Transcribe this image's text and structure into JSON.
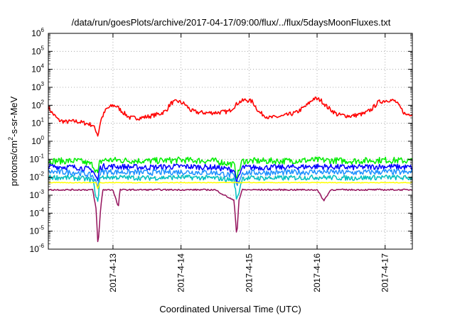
{
  "chart_data": {
    "type": "line",
    "title": "/data/run/goesPlots/archive/2017-04-17/09:00/flux/../flux/5daysMoonFluxes.txt",
    "xlabel": "Coordinated Universal Time (UTC)",
    "ylabel": "protons/cm2-s-sr-MeV",
    "y_scale": "log",
    "ylim_exponent": [
      -6,
      6
    ],
    "y_ticks_exponent": [
      -6,
      -5,
      -4,
      -3,
      -2,
      -1,
      0,
      1,
      2,
      3,
      4,
      5,
      6
    ],
    "x_ticks": [
      "2017-4-13",
      "2017-4-14",
      "2017-4-15",
      "2017-4-16",
      "2017-4-17"
    ],
    "x_tick_label_rotation_deg": -90,
    "xlim_days": [
      12.05,
      17.4
    ],
    "grid": true,
    "grid_style": "dotted",
    "legend": "none",
    "colors": {
      "red": "#ff0000",
      "green": "#00ee00",
      "blue": "#0000ff",
      "medium_blue": "#1e90ff",
      "cyan": "#00c0c0",
      "yellow": "#ffff00",
      "purple": "#94125c"
    },
    "series": [
      {
        "color": "#ff0000",
        "x": [
          12.05,
          12.1,
          12.2,
          12.3,
          12.45,
          12.6,
          12.7,
          12.75,
          12.78,
          12.82,
          12.9,
          13.0,
          13.05,
          13.15,
          13.25,
          13.4,
          13.55,
          13.7,
          13.78,
          13.85,
          13.95,
          14.05,
          14.15,
          14.25,
          14.4,
          14.55,
          14.7,
          14.8,
          14.85,
          14.95,
          15.05,
          15.15,
          15.3,
          15.5,
          15.7,
          15.85,
          15.95,
          16.05,
          16.15,
          16.3,
          16.5,
          16.7,
          16.8,
          16.9,
          17.05,
          17.15,
          17.3,
          17.4
        ],
        "y": [
          80,
          40,
          15,
          12,
          13,
          10,
          8,
          4,
          2,
          15,
          60,
          100,
          90,
          40,
          20,
          20,
          25,
          35,
          50,
          130,
          170,
          120,
          50,
          40,
          38,
          40,
          45,
          100,
          150,
          200,
          160,
          40,
          20,
          25,
          40,
          100,
          240,
          200,
          80,
          30,
          25,
          35,
          60,
          150,
          200,
          170,
          30,
          35
        ]
      },
      {
        "color": "#00ee00",
        "x": [
          12.05,
          12.5,
          12.7,
          12.78,
          12.8,
          12.85,
          13.0,
          13.5,
          14.0,
          14.5,
          14.78,
          14.82,
          14.9,
          15.5,
          16.0,
          16.5,
          17.0,
          17.4
        ],
        "y": [
          0.08,
          0.08,
          0.05,
          0.015,
          0.06,
          0.09,
          0.09,
          0.08,
          0.09,
          0.08,
          0.05,
          0.01,
          0.08,
          0.08,
          0.09,
          0.08,
          0.09,
          0.08
        ]
      },
      {
        "color": "#0000ff",
        "x": [
          12.05,
          12.5,
          12.7,
          12.78,
          12.8,
          12.85,
          13.0,
          13.5,
          14.0,
          14.5,
          14.78,
          14.82,
          14.9,
          15.5,
          16.0,
          16.5,
          17.0,
          17.4
        ],
        "y": [
          0.04,
          0.035,
          0.025,
          0.006,
          0.03,
          0.04,
          0.04,
          0.035,
          0.04,
          0.035,
          0.025,
          0.005,
          0.035,
          0.035,
          0.04,
          0.035,
          0.04,
          0.035
        ]
      },
      {
        "color": "#1e90ff",
        "x": [
          12.05,
          12.5,
          12.7,
          12.78,
          12.8,
          12.85,
          13.0,
          13.5,
          14.0,
          14.5,
          14.78,
          14.82,
          14.9,
          15.5,
          16.0,
          16.5,
          17.0,
          17.4
        ],
        "y": [
          0.02,
          0.018,
          0.012,
          0.003,
          0.015,
          0.02,
          0.02,
          0.018,
          0.02,
          0.018,
          0.012,
          0.003,
          0.018,
          0.018,
          0.02,
          0.018,
          0.02,
          0.018
        ]
      },
      {
        "color": "#00c0c0",
        "x": [
          12.05,
          12.5,
          12.7,
          12.78,
          12.8,
          12.85,
          13.0,
          13.5,
          14.0,
          14.5,
          14.78,
          14.82,
          14.9,
          15.5,
          16.0,
          16.5,
          17.0,
          17.4
        ],
        "y": [
          0.01,
          0.009,
          0.007,
          0.0003,
          0.008,
          0.01,
          0.01,
          0.009,
          0.01,
          0.009,
          0.007,
          0.0005,
          0.009,
          0.009,
          0.01,
          0.009,
          0.01,
          0.009
        ]
      },
      {
        "color": "#ffff00",
        "x": [
          12.05,
          12.5,
          12.75,
          12.78,
          12.8,
          12.85,
          13.0,
          13.5,
          14.0,
          14.5,
          14.8,
          14.85,
          15.0,
          15.5,
          16.0,
          16.5,
          17.0,
          17.4
        ],
        "y": [
          0.005,
          0.005,
          0.005,
          0.002,
          0.005,
          0.005,
          0.005,
          0.005,
          0.005,
          0.005,
          0.005,
          0.005,
          0.005,
          0.005,
          0.005,
          0.005,
          0.005,
          0.005
        ]
      },
      {
        "color": "#94125c",
        "x": [
          12.05,
          12.3,
          12.5,
          12.7,
          12.75,
          12.78,
          12.82,
          12.85,
          12.9,
          13.0,
          13.05,
          13.08,
          13.1,
          13.3,
          13.5,
          14.0,
          14.5,
          14.78,
          14.82,
          14.85,
          14.9,
          15.5,
          16.0,
          16.1,
          16.2,
          16.5,
          17.0,
          17.4
        ],
        "y": [
          0.002,
          0.002,
          0.002,
          0.002,
          0.0002,
          1.5e-06,
          0.0002,
          0.002,
          0.002,
          0.002,
          0.0005,
          0.0002,
          0.002,
          0.002,
          0.002,
          0.002,
          0.002,
          0.0005,
          5e-06,
          0.0005,
          0.002,
          0.002,
          0.002,
          0.0005,
          0.002,
          0.002,
          0.002,
          0.002
        ]
      }
    ]
  }
}
